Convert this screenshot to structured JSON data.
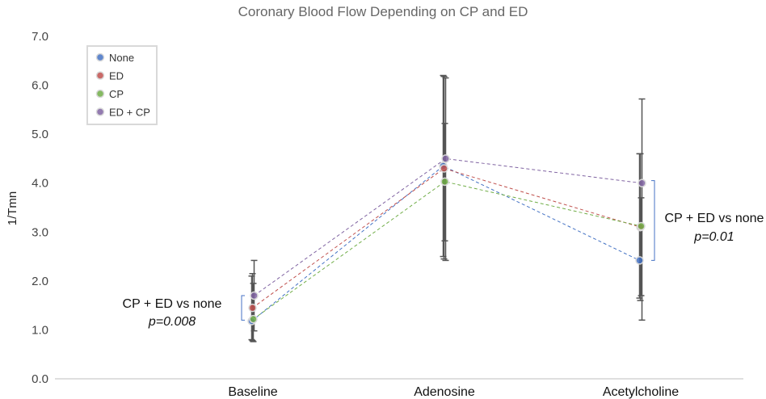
{
  "chart_data": {
    "type": "line",
    "title": "Coronary Blood Flow Depending on CP and ED",
    "xlabel": "",
    "ylabel": "1/Tmn",
    "ylim": [
      0,
      7
    ],
    "y_ticks": [
      "0.0",
      "1.0",
      "2.0",
      "3.0",
      "4.0",
      "5.0",
      "6.0",
      "7.0"
    ],
    "categories": [
      "Baseline",
      "Adenosine",
      "Acetylcholine"
    ],
    "series": [
      {
        "name": "None",
        "color": "#4472C4",
        "values": [
          1.18,
          4.35,
          2.42
        ],
        "err_low": [
          0.8,
          2.5,
          1.65
        ],
        "err_high": [
          2.1,
          6.2,
          4.6
        ]
      },
      {
        "name": "ED",
        "color": "#C0504D",
        "values": [
          1.45,
          4.3,
          3.1
        ],
        "err_low": [
          0.78,
          2.45,
          1.6
        ],
        "err_high": [
          2.15,
          6.18,
          4.6
        ]
      },
      {
        "name": "CP",
        "color": "#70AD47",
        "values": [
          1.22,
          4.03,
          3.12
        ],
        "err_low": [
          0.76,
          2.82,
          1.7
        ],
        "err_high": [
          1.95,
          5.22,
          3.7
        ]
      },
      {
        "name": "ED + CP",
        "color": "#8064A2",
        "values": [
          1.7,
          4.5,
          4.0
        ],
        "err_low": [
          0.98,
          2.42,
          1.2
        ],
        "err_high": [
          2.42,
          6.15,
          5.72
        ]
      }
    ],
    "legend_position": "top-left",
    "annotations": [
      {
        "text": "CP + ED vs none",
        "p": "p=0.008",
        "category": "Baseline",
        "y_range": [
          1.2,
          1.7
        ]
      },
      {
        "text": "CP + ED vs none",
        "p": "p=0.01",
        "category": "Acetylcholine",
        "y_range": [
          2.42,
          4.05
        ]
      }
    ]
  }
}
